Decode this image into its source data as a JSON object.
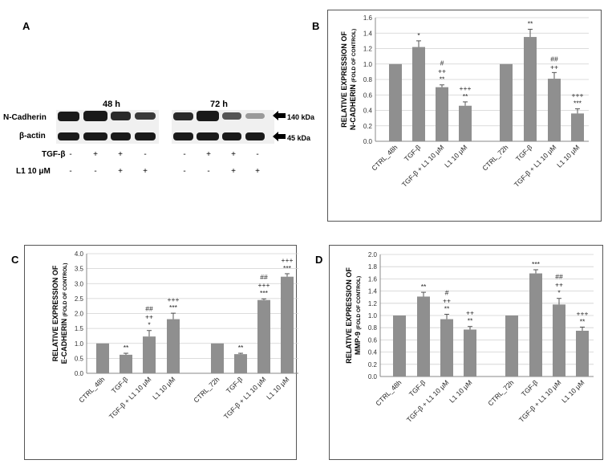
{
  "panels": {
    "A": "A",
    "B": "B",
    "C": "C",
    "D": "D"
  },
  "blot": {
    "time_48": "48 h",
    "time_72": "72 h",
    "row1": "N-Cadherin",
    "row2": "β-actin",
    "kda1": "140 kDa",
    "kda2": "45 kDa",
    "tgf_label": "TGF-β",
    "l1_label": "L1 10 μM",
    "tgf_signs": [
      "-",
      "+",
      "+",
      "-",
      "-",
      "+",
      "+",
      "-"
    ],
    "l1_signs": [
      "-",
      "-",
      "+",
      "+",
      "-",
      "-",
      "+",
      "+"
    ]
  },
  "chart_data": [
    {
      "panel": "B",
      "type": "bar",
      "ylabel1": "RELATIVE EXPRESSION OF",
      "ylabel2": "N-CADHERIN",
      "ylabel_sub": "(FOLD OF CONTROL)",
      "ylim": [
        0,
        1.6
      ],
      "ytick_step": 0.2,
      "decimals": 1,
      "categories": [
        "CTRL_48h",
        "TGF-β",
        "TGF-β + L1 10 μM",
        "L1 10 μM",
        "CTRL_72h",
        "TGF-β",
        "TGF-β + L1 10 μM",
        "L1 10 μM"
      ],
      "values": [
        1.0,
        1.22,
        0.7,
        0.46,
        1.0,
        1.35,
        0.81,
        0.36
      ],
      "errors": [
        0,
        0.08,
        0.03,
        0.05,
        0,
        0.1,
        0.08,
        0.06
      ],
      "annotations": [
        [],
        [
          "*"
        ],
        [
          "#",
          "++",
          "**"
        ],
        [
          "+++",
          "**"
        ],
        [],
        [
          "**"
        ],
        [
          "##",
          "++"
        ],
        [
          "+++",
          "***"
        ]
      ]
    },
    {
      "panel": "C",
      "type": "bar",
      "ylabel1": "RELATIVE EXPRESSION OF",
      "ylabel2": "E-CADHERIN",
      "ylabel_sub": "(FOLD OF CONTROL)",
      "ylim": [
        0,
        4.0
      ],
      "ytick_step": 0.5,
      "decimals": 1,
      "categories": [
        "CTRL_48h",
        "TGF-β",
        "TGF-β + L1 10 μM",
        "L1 10 μM",
        "CTRL_72h",
        "TGF-β",
        "TGF-β + L1 10 μM",
        "L1 10 μM"
      ],
      "values": [
        1.0,
        0.62,
        1.23,
        1.81,
        1.0,
        0.64,
        2.45,
        3.23
      ],
      "errors": [
        0,
        0.05,
        0.2,
        0.2,
        0,
        0.03,
        0.04,
        0.1
      ],
      "annotations": [
        [],
        [
          "**"
        ],
        [
          "##",
          "++",
          "*"
        ],
        [
          "+++",
          "***"
        ],
        [],
        [
          "**"
        ],
        [
          "##",
          "+++",
          "***"
        ],
        [
          "+++",
          "***"
        ]
      ]
    },
    {
      "panel": "D",
      "type": "bar",
      "ylabel1": "RELATIVE EXPRESSION OF",
      "ylabel2": "MMP-9",
      "ylabel_sub": "(FOLD OF CONTROL)",
      "ylim": [
        0,
        2.0
      ],
      "ytick_step": 0.2,
      "decimals": 1,
      "categories": [
        "CTRL_48h",
        "TGF-β",
        "TGF-β + L1 10 μM",
        "L1 10 μM",
        "CTRL_72h",
        "TGF-β",
        "TGF-β + L1 10 μM",
        "L1 10 μM"
      ],
      "values": [
        1.0,
        1.31,
        0.94,
        0.77,
        1.0,
        1.69,
        1.18,
        0.75
      ],
      "errors": [
        0,
        0.07,
        0.08,
        0.05,
        0,
        0.06,
        0.1,
        0.06
      ],
      "annotations": [
        [],
        [
          "**"
        ],
        [
          "#",
          "++",
          "**"
        ],
        [
          "++",
          "**"
        ],
        [],
        [
          "***"
        ],
        [
          "##",
          "++",
          "*"
        ],
        [
          "+++",
          "**"
        ]
      ]
    }
  ]
}
